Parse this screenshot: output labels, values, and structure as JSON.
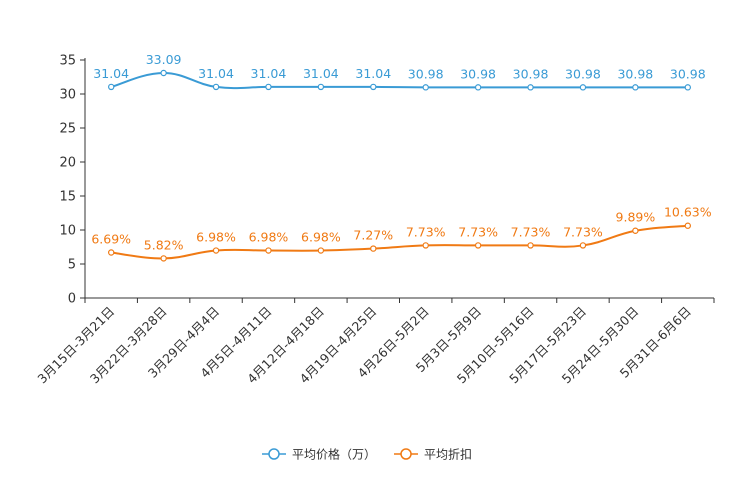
{
  "chart_data": {
    "type": "line",
    "title": "",
    "xlabel": "",
    "ylabel": "",
    "ylim": [
      0,
      35
    ],
    "yticks": [
      0,
      5,
      10,
      15,
      20,
      25,
      30,
      35
    ],
    "grid": false,
    "legend_position": "bottom-center",
    "categories": [
      "3月15日-3月21日",
      "3月22日-3月28日",
      "3月29日-4月4日",
      "4月5日-4月11日",
      "4月12日-4月18日",
      "4月19日-4月25日",
      "4月26日-5月2日",
      "5月3日-5月9日",
      "5月10日-5月16日",
      "5月17日-5月23日",
      "5月24日-5月30日",
      "5月31日-6月6日"
    ],
    "series": [
      {
        "name": "平均价格（万）",
        "color": "#3a9bd5",
        "values": [
          31.04,
          33.09,
          31.04,
          31.04,
          31.04,
          31.04,
          30.98,
          30.98,
          30.98,
          30.98,
          30.98,
          30.98
        ],
        "labels": [
          "31.04",
          "33.09",
          "31.04",
          "31.04",
          "31.04",
          "31.04",
          "30.98",
          "30.98",
          "30.98",
          "30.98",
          "30.98",
          "30.98"
        ]
      },
      {
        "name": "平均折扣",
        "color": "#f07a14",
        "values": [
          6.69,
          5.82,
          6.98,
          6.98,
          6.98,
          7.27,
          7.73,
          7.73,
          7.73,
          7.73,
          9.89,
          10.63
        ],
        "labels": [
          "6.69%",
          "5.82%",
          "6.98%",
          "6.98%",
          "6.98%",
          "7.27%",
          "7.73%",
          "7.73%",
          "7.73%",
          "7.73%",
          "9.89%",
          "10.63%"
        ]
      }
    ]
  }
}
